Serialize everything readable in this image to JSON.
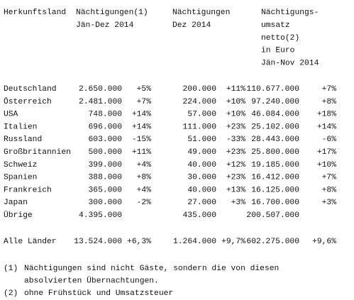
{
  "table": {
    "headers": [
      [
        "Herkunftsland"
      ],
      [
        "Nächtigungen(1)",
        "Jän-Dez 2014"
      ],
      [
        "Nächtigungen",
        "Dez 2014"
      ],
      [
        "Nächtigungs-",
        "umsatz",
        "netto(2)",
        "in Euro",
        "Jän-Nov 2014"
      ]
    ],
    "rows": [
      [
        "Deutschland",
        "2.650.000",
        "+5%",
        "200.000",
        "+11%",
        "110.677.000",
        "+7%"
      ],
      [
        "Österreich",
        "2.481.000",
        "+7%",
        "224.000",
        "+10%",
        "97.240.000",
        "+8%"
      ],
      [
        "USA",
        "748.000",
        "+14%",
        "57.000",
        "+10%",
        "46.084.000",
        "+18%"
      ],
      [
        "Italien",
        "696.000",
        "+14%",
        "111.000",
        "+23%",
        "25.102.000",
        "+14%"
      ],
      [
        "Russland",
        "603.000",
        "-15%",
        "51.000",
        "-33%",
        "28.443.000",
        "-6%"
      ],
      [
        "Großbritannien",
        "500.000",
        "+11%",
        "49.000",
        "+23%",
        "25.800.000",
        "+17%"
      ],
      [
        "Schweiz",
        "399.000",
        "+4%",
        "40.000",
        "+12%",
        "19.185.000",
        "+10%"
      ],
      [
        "Spanien",
        "388.000",
        "+8%",
        "30.000",
        "+23%",
        "16.412.000",
        "+7%"
      ],
      [
        "Frankreich",
        "365.000",
        "+4%",
        "40.000",
        "+13%",
        "16.125.000",
        "+8%"
      ],
      [
        "Japan",
        "300.000",
        "-2%",
        "27.000",
        "+3%",
        "16.700.000",
        "+3%"
      ],
      [
        "Übrige",
        "4.395.000",
        null,
        "435.000",
        null,
        "200.507.000",
        null
      ]
    ],
    "total": [
      "Alle Länder",
      "13.524.000",
      "+6,3%",
      "1.264.000",
      "+9,7%",
      "602.275.000",
      "+9,6%"
    ]
  },
  "footnotes": [
    {
      "marker": "(1)",
      "lines": [
        "Nächtigungen sind nicht Gäste, sondern die von diesen",
        "absolvierten Übernachtungen."
      ]
    },
    {
      "marker": "(2)",
      "lines": [
        "ohne Frühstück und Umsatzsteuer"
      ]
    }
  ]
}
